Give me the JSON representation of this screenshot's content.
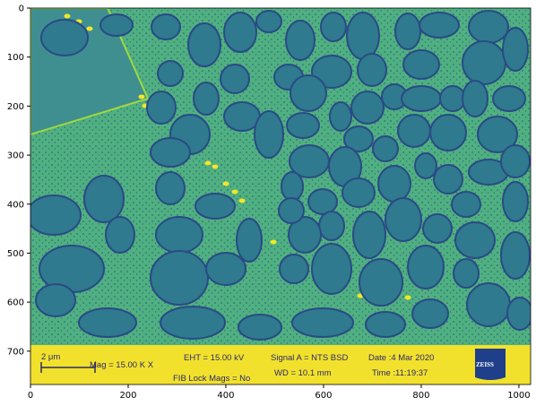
{
  "axes": {
    "x_ticks": [
      0,
      200,
      400,
      600,
      800,
      1000
    ],
    "y_ticks": [
      0,
      100,
      200,
      300,
      400,
      500,
      600,
      700
    ],
    "x_range": [
      0,
      1024
    ],
    "y_range": [
      0,
      768
    ]
  },
  "colors": {
    "background": "#3f8f90",
    "matrix": "#4fb080",
    "edge": "#a0d840",
    "grain": "#2f7a8e",
    "grain_rim": "#2a4a85",
    "yellow": "#f5e52a",
    "info_bar": "#f2e12c",
    "info_text": "#2b2a6b"
  },
  "info_bar": {
    "scale_label": "2 μm",
    "mag": "Mag =   15.00 K X",
    "eht": "EHT = 15.00 kV",
    "signal": "Signal A = NTS BSD",
    "date": "Date :4 Mar 2020",
    "fib": "FIB Lock Mags = No",
    "wd": "WD = 10.1 mm",
    "time": "Time :11:19:37",
    "logo": "ZEISS"
  }
}
